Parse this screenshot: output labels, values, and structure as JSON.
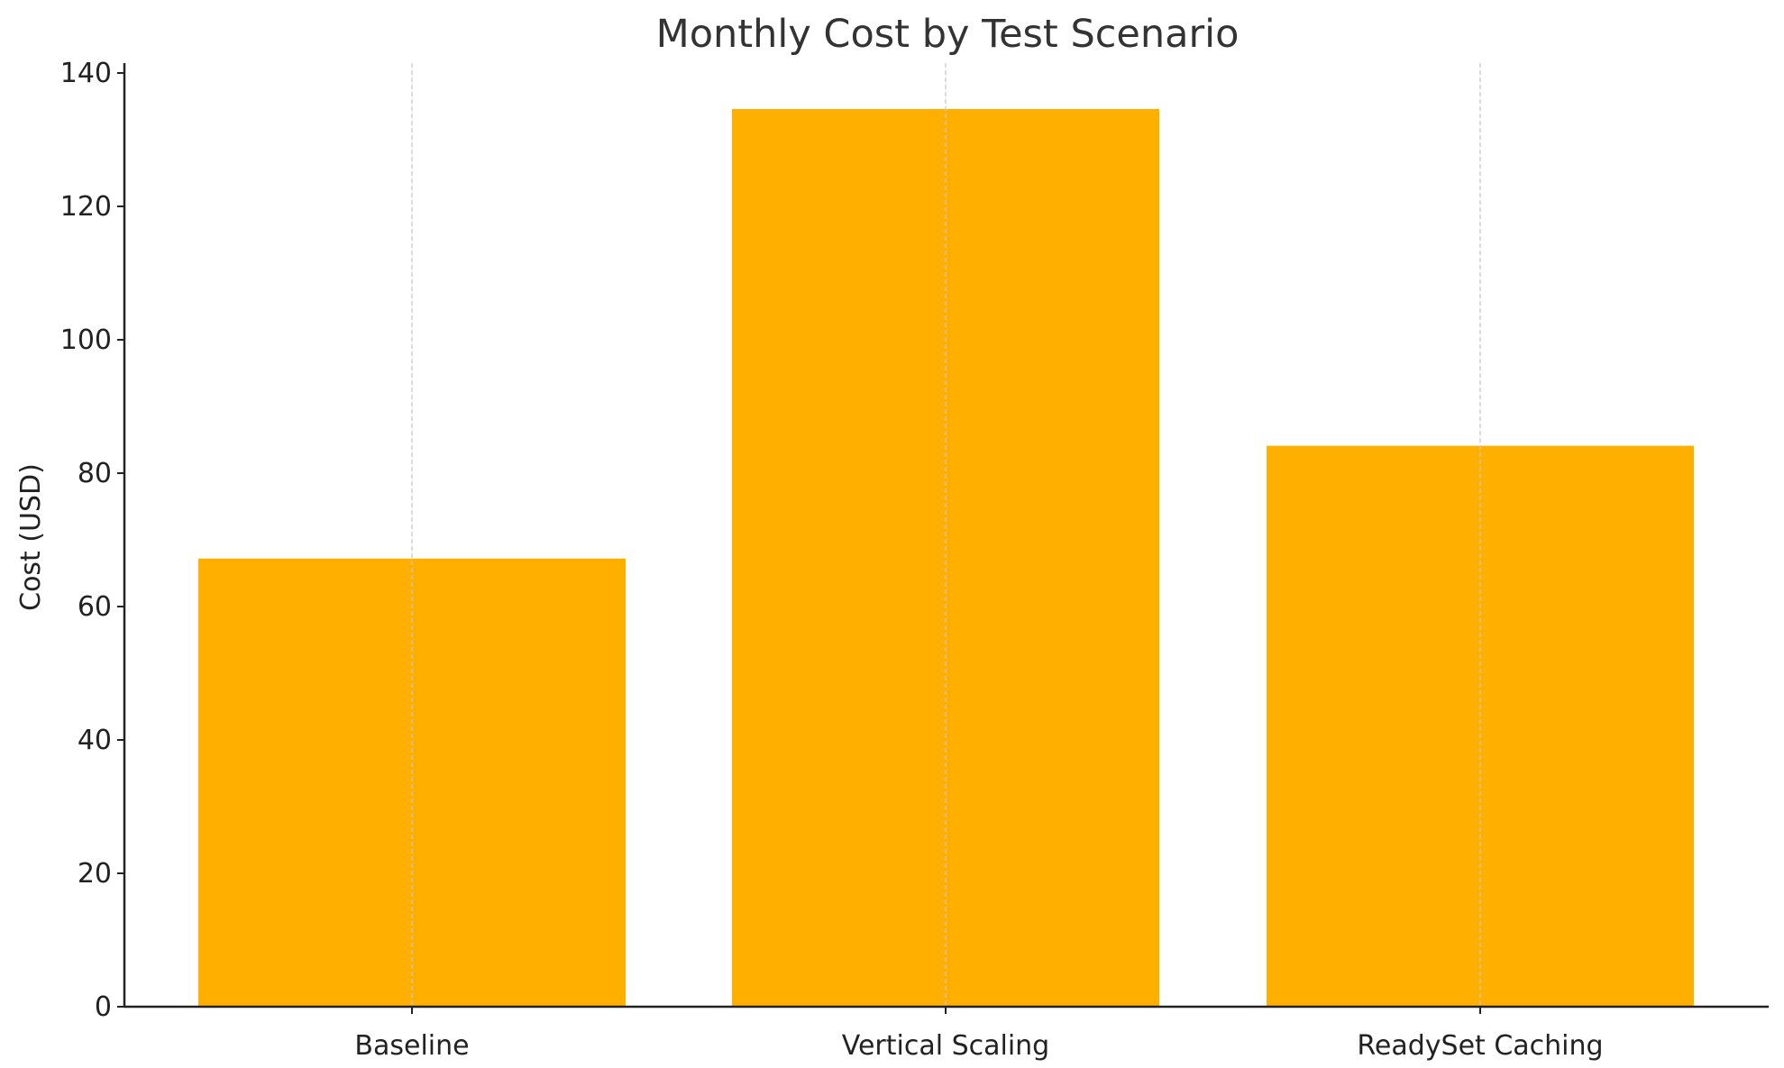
{
  "chart_data": {
    "type": "bar",
    "title": "Monthly Cost by Test Scenario",
    "xlabel": "",
    "ylabel": "Cost (USD)",
    "categories": [
      "Baseline",
      "Vertical Scaling",
      "ReadySet Caching"
    ],
    "values": [
      67.2,
      134.6,
      84.1
    ],
    "ylim": [
      0,
      140
    ],
    "yticks": [
      0,
      20,
      40,
      60,
      80,
      100,
      120,
      140
    ],
    "grid": "x-axis vertical dashed lines",
    "legend": "none",
    "bar_color": "#FFAF00",
    "grid_color": "#c8c8c8",
    "axis_color": "#222222"
  }
}
